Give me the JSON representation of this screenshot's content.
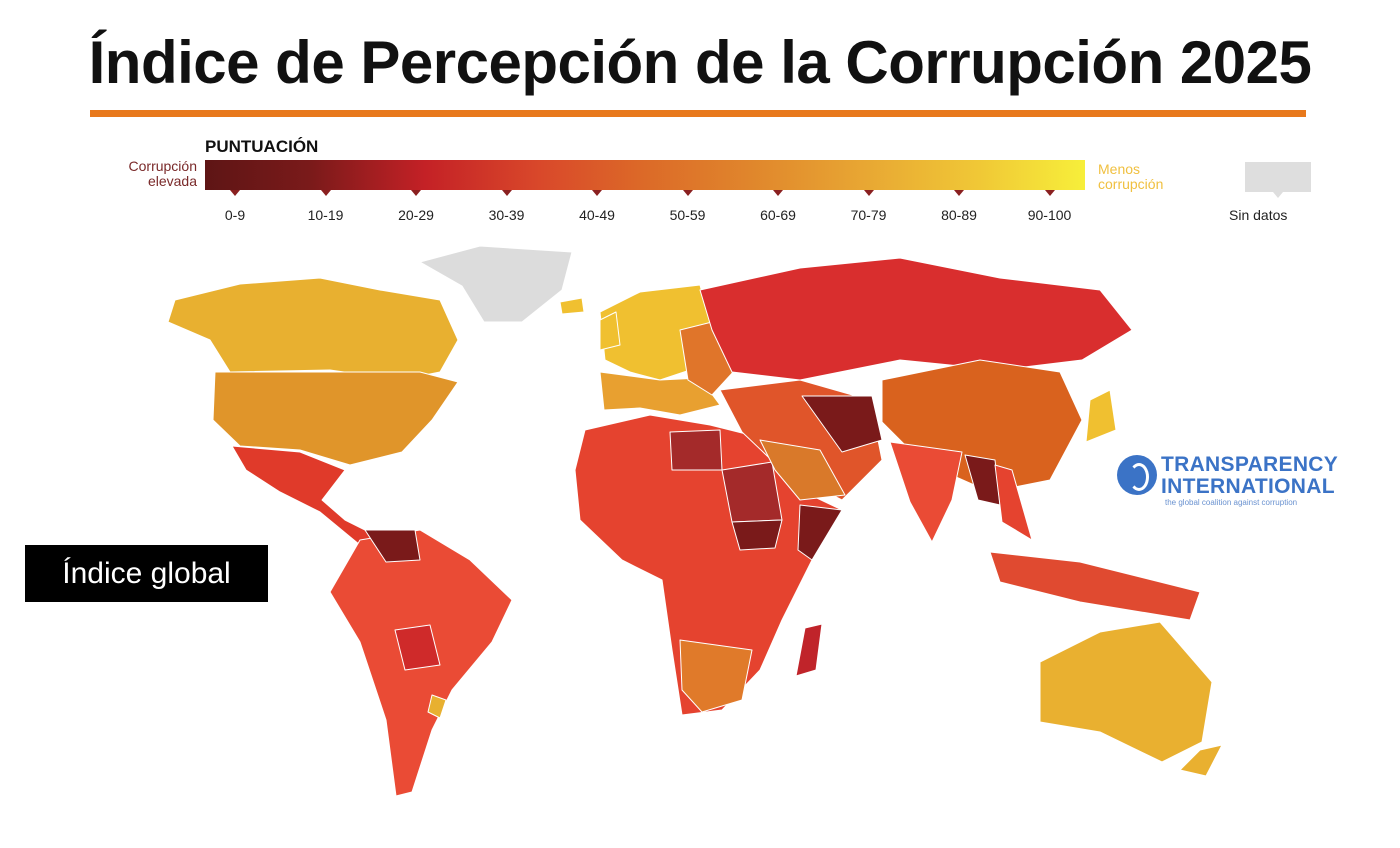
{
  "title": "Índice de Percepción de la Corrupción 2025",
  "legend": {
    "heading": "PUNTUACIÓN",
    "left_label": "Corrupción elevada",
    "right_label": "Menos corrupción",
    "ranges": [
      "0-9",
      "10-19",
      "20-29",
      "30-39",
      "40-49",
      "50-59",
      "60-69",
      "70-79",
      "80-89",
      "90-100"
    ],
    "no_data": "Sin datos",
    "colors": {
      "high_corruption": "#5e1515",
      "low_corruption": "#f7ef3a",
      "no_data": "#dedede"
    }
  },
  "badge": "Índice global",
  "logo": {
    "name": "TRANSPARENCY INTERNATIONAL",
    "tagline": "the global coalition against corruption",
    "color": "#3b73c6"
  },
  "accent_color": "#e8791c"
}
